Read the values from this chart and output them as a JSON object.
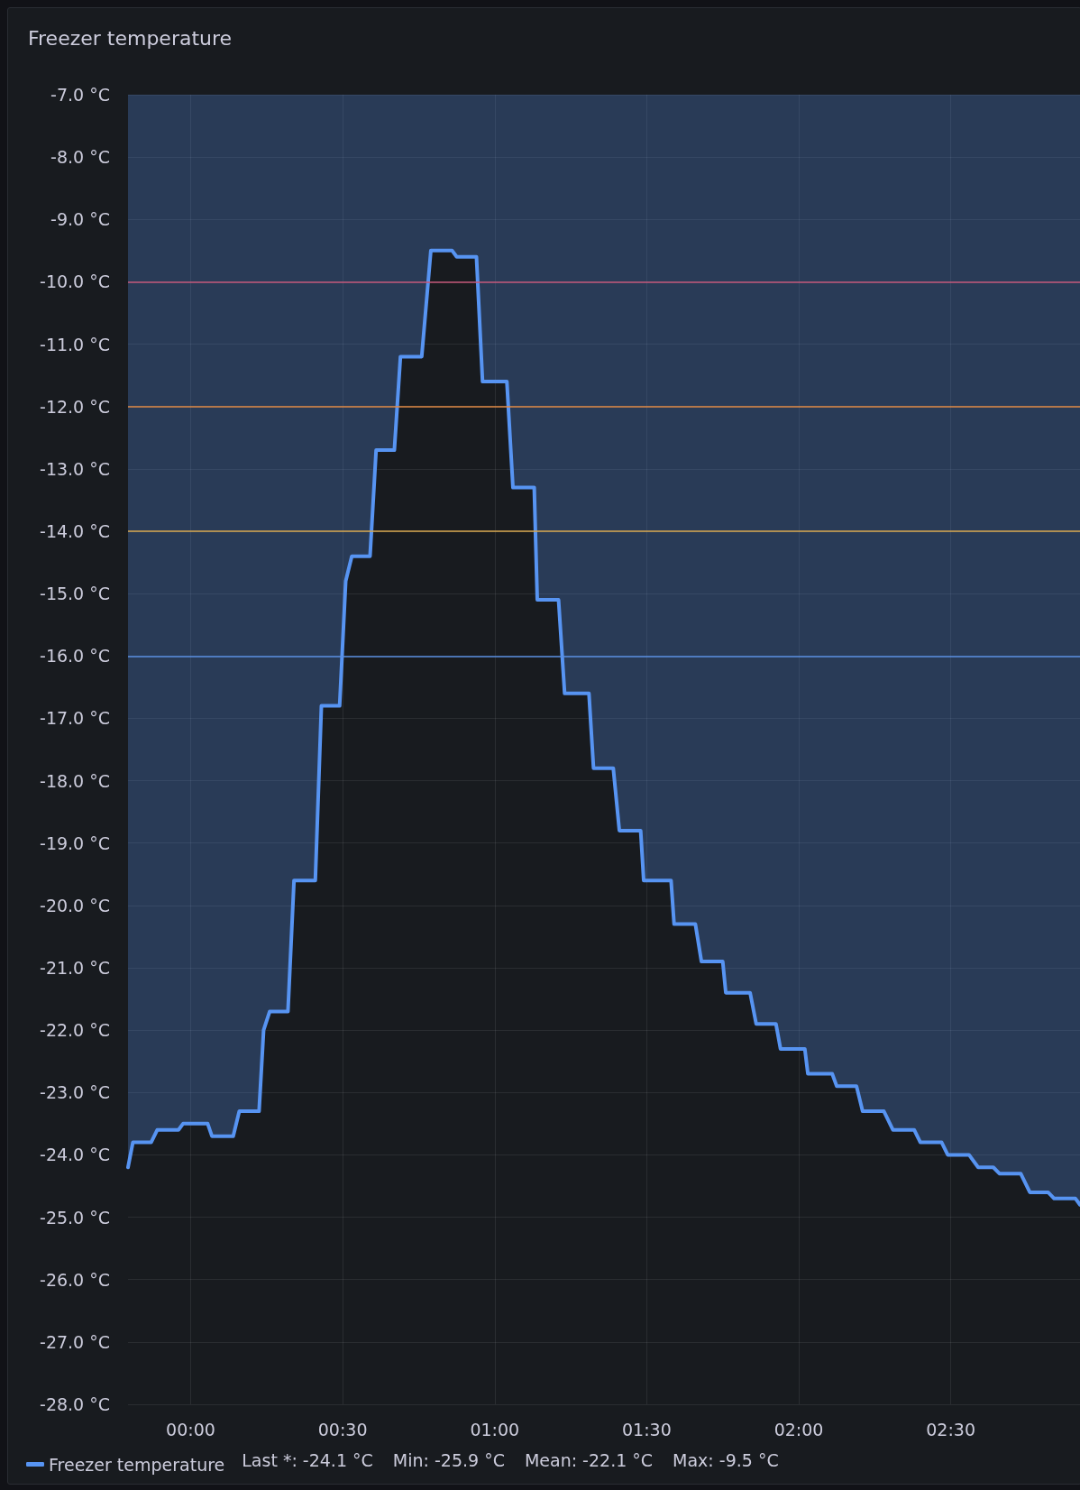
{
  "chart_data": {
    "type": "area",
    "title": "Freezer temperature",
    "x": [
      -0.206,
      -0.19,
      -0.13,
      -0.11,
      -0.04,
      -0.025,
      0.056,
      0.07,
      0.14,
      0.16,
      0.225,
      0.24,
      0.26,
      0.32,
      0.34,
      0.41,
      0.43,
      0.49,
      0.51,
      0.53,
      0.59,
      0.61,
      0.67,
      0.69,
      0.76,
      0.79,
      0.86,
      0.875,
      0.94,
      0.96,
      1.04,
      1.06,
      1.13,
      1.14,
      1.21,
      1.23,
      1.31,
      1.325,
      1.39,
      1.41,
      1.48,
      1.49,
      1.58,
      1.59,
      1.66,
      1.68,
      1.75,
      1.76,
      1.84,
      1.86,
      1.925,
      1.94,
      2.02,
      2.03,
      2.11,
      2.125,
      2.19,
      2.21,
      2.28,
      2.31,
      2.38,
      2.4,
      2.47,
      2.49,
      2.56,
      2.59,
      2.64,
      2.66,
      2.73,
      2.76,
      2.82,
      2.84,
      2.91,
      2.925
    ],
    "series": [
      {
        "name": "Freezer temperature",
        "color": "#5794f2",
        "values": [
          -24.2,
          -23.8,
          -23.8,
          -23.6,
          -23.6,
          -23.5,
          -23.5,
          -23.7,
          -23.7,
          -23.3,
          -23.3,
          -22.0,
          -21.7,
          -21.7,
          -19.6,
          -19.6,
          -16.8,
          -16.8,
          -14.8,
          -14.4,
          -14.4,
          -12.7,
          -12.7,
          -11.2,
          -11.2,
          -9.5,
          -9.5,
          -9.6,
          -9.6,
          -11.6,
          -11.6,
          -13.3,
          -13.3,
          -15.1,
          -15.1,
          -16.6,
          -16.6,
          -17.8,
          -17.8,
          -18.8,
          -18.8,
          -19.6,
          -19.6,
          -20.3,
          -20.3,
          -20.9,
          -20.9,
          -21.4,
          -21.4,
          -21.9,
          -21.9,
          -22.3,
          -22.3,
          -22.7,
          -22.7,
          -22.9,
          -22.9,
          -23.3,
          -23.3,
          -23.6,
          -23.6,
          -23.8,
          -23.8,
          -24.0,
          -24.0,
          -24.2,
          -24.2,
          -24.3,
          -24.3,
          -24.6,
          -24.6,
          -24.7,
          -24.7,
          -24.8
        ]
      }
    ],
    "xlim": [
      -0.206,
      2.925
    ],
    "xticks": [
      {
        "value": 0,
        "label": "00:00"
      },
      {
        "value": 0.5,
        "label": "00:30"
      },
      {
        "value": 1,
        "label": "01:00"
      },
      {
        "value": 1.5,
        "label": "01:30"
      },
      {
        "value": 2,
        "label": "02:00"
      },
      {
        "value": 2.5,
        "label": "02:30"
      }
    ],
    "ylim": [
      -28,
      -7
    ],
    "yticks": [
      {
        "value": -7,
        "label": "-7.0 °C"
      },
      {
        "value": -8,
        "label": "-8.0 °C"
      },
      {
        "value": -9,
        "label": "-9.0 °C"
      },
      {
        "value": -10,
        "label": "-10.0 °C"
      },
      {
        "value": -11,
        "label": "-11.0 °C"
      },
      {
        "value": -12,
        "label": "-12.0 °C"
      },
      {
        "value": -13,
        "label": "-13.0 °C"
      },
      {
        "value": -14,
        "label": "-14.0 °C"
      },
      {
        "value": -15,
        "label": "-15.0 °C"
      },
      {
        "value": -16,
        "label": "-16.0 °C"
      },
      {
        "value": -17,
        "label": "-17.0 °C"
      },
      {
        "value": -18,
        "label": "-18.0 °C"
      },
      {
        "value": -19,
        "label": "-19.0 °C"
      },
      {
        "value": -20,
        "label": "-20.0 °C"
      },
      {
        "value": -21,
        "label": "-21.0 °C"
      },
      {
        "value": -22,
        "label": "-22.0 °C"
      },
      {
        "value": -23,
        "label": "-23.0 °C"
      },
      {
        "value": -24,
        "label": "-24.0 °C"
      },
      {
        "value": -25,
        "label": "-25.0 °C"
      },
      {
        "value": -26,
        "label": "-26.0 °C"
      },
      {
        "value": -27,
        "label": "-27.0 °C"
      },
      {
        "value": -28,
        "label": "-28.0 °C"
      }
    ],
    "ref_lines": [
      {
        "axis": "y",
        "value": -10,
        "color": "#c4587a"
      },
      {
        "axis": "y",
        "value": -12,
        "color": "#e08a45"
      },
      {
        "axis": "y",
        "value": -14,
        "color": "#d9a94f"
      },
      {
        "axis": "y",
        "value": -16,
        "color": "#5a8fe0"
      }
    ],
    "annotations": [
      "Last *: -24.1 °C",
      "Min: -25.9 °C",
      "Mean: -22.1 °C",
      "Max: -9.5 °C"
    ],
    "grid": true,
    "legend": "bottom left",
    "marker": "none",
    "line_style": "solid"
  }
}
